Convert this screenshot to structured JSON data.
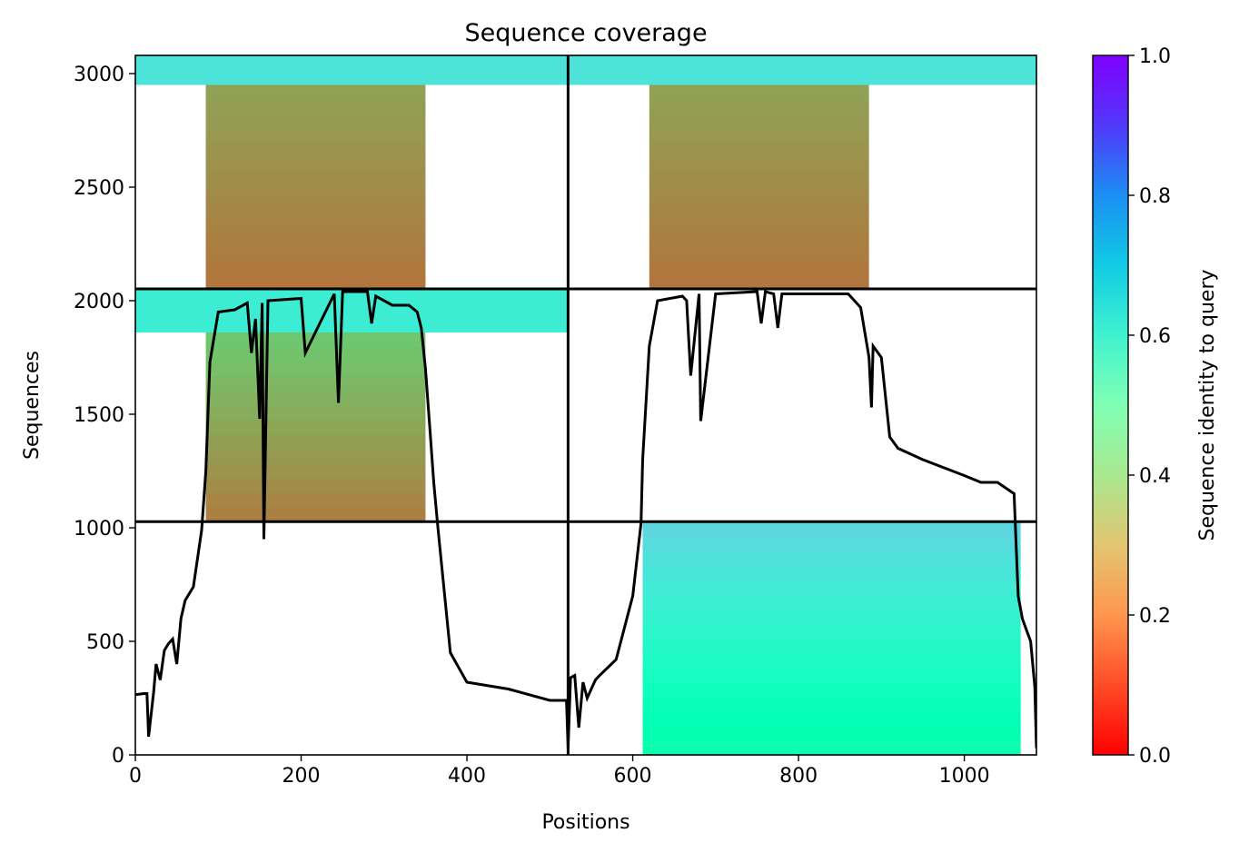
{
  "chart_data": {
    "type": "heatmap",
    "title": "Sequence coverage",
    "xlabel": "Positions",
    "ylabel": "Sequences",
    "colorbar_label": "Sequence identity to query",
    "colormap": "rainbow_r",
    "xlim": [
      0,
      1087
    ],
    "ylim": [
      0,
      3080
    ],
    "x_ticks": [
      "0",
      "200",
      "400",
      "600",
      "800",
      "1000"
    ],
    "x_tick_values": [
      0,
      200,
      400,
      600,
      800,
      1000
    ],
    "y_ticks": [
      "0",
      "500",
      "1000",
      "1500",
      "2000",
      "2500",
      "3000"
    ],
    "y_tick_values": [
      0,
      500,
      1000,
      1500,
      2000,
      2500,
      3000
    ],
    "colorbar_ticks": [
      "0.0",
      "0.2",
      "0.4",
      "0.6",
      "0.8",
      "1.0"
    ],
    "colorbar_tick_values": [
      0.0,
      0.2,
      0.4,
      0.6,
      0.8,
      1.0
    ],
    "chain_boundaries_x": [
      522
    ],
    "block_boundaries_y": [
      1027,
      2052
    ],
    "blocks": [
      {
        "y_range": [
          0,
          1027
        ],
        "x_range": [
          522,
          1087
        ],
        "span": [
          612,
          1068
        ],
        "identity_bottom": 0.47,
        "identity_top": 0.69
      },
      {
        "y_range": [
          1027,
          2052
        ],
        "x_range": [
          0,
          522
        ],
        "span": [
          85,
          350
        ],
        "identity_bottom": 0.16,
        "identity_top": 0.32
      },
      {
        "y_range": [
          1027,
          2052
        ],
        "x_range": [
          522,
          1087
        ],
        "span": [
          0,
          0
        ],
        "identity_bottom": 0.0,
        "identity_top": 0.0
      },
      {
        "y_range": [
          2052,
          3080
        ],
        "x_range": [
          0,
          522
        ],
        "span": [
          85,
          350
        ],
        "identity_bottom": 0.15,
        "identity_top": 0.23
      },
      {
        "y_range": [
          2052,
          3080
        ],
        "x_range": [
          522,
          1087
        ],
        "span": [
          620,
          885
        ],
        "identity_bottom": 0.15,
        "identity_top": 0.23
      }
    ],
    "high_identity_bands": [
      {
        "y_range": [
          1860,
          2052
        ],
        "x_range": [
          0,
          522
        ],
        "identity": 0.62
      },
      {
        "y_range": [
          2950,
          3080
        ],
        "x_range": [
          0,
          1087
        ],
        "identity": 0.65
      }
    ],
    "coverage_line": {
      "color": "#000000",
      "x": [
        0,
        10,
        14,
        16,
        22,
        25,
        30,
        35,
        40,
        45,
        50,
        55,
        60,
        70,
        80,
        85,
        90,
        100,
        120,
        135,
        140,
        145,
        150,
        153,
        155,
        160,
        200,
        205,
        240,
        245,
        250,
        280,
        285,
        290,
        300,
        310,
        330,
        340,
        345,
        350,
        355,
        360,
        365,
        380,
        400,
        450,
        500,
        520,
        522,
        525,
        530,
        535,
        540,
        545,
        555,
        560,
        580,
        600,
        610,
        612,
        620,
        630,
        660,
        665,
        670,
        680,
        682,
        700,
        750,
        755,
        760,
        770,
        775,
        780,
        860,
        875,
        885,
        888,
        890,
        900,
        910,
        920,
        950,
        1000,
        1020,
        1040,
        1060,
        1065,
        1070,
        1075,
        1080,
        1085,
        1087
      ],
      "y": [
        265,
        270,
        270,
        80,
        275,
        400,
        330,
        460,
        490,
        510,
        400,
        600,
        680,
        740,
        990,
        1250,
        1730,
        1950,
        1960,
        1990,
        1770,
        1920,
        1480,
        1990,
        950,
        2000,
        2010,
        1770,
        2030,
        1550,
        2040,
        2040,
        1900,
        2020,
        2000,
        1980,
        1980,
        1950,
        1880,
        1700,
        1450,
        1200,
        1000,
        450,
        320,
        290,
        240,
        240,
        30,
        340,
        350,
        120,
        320,
        250,
        330,
        350,
        420,
        700,
        1020,
        1300,
        1800,
        2000,
        2020,
        2000,
        1670,
        2030,
        1470,
        2030,
        2040,
        1900,
        2040,
        2030,
        1880,
        2030,
        2030,
        1970,
        1750,
        1530,
        1800,
        1750,
        1400,
        1350,
        1300,
        1230,
        1200,
        1200,
        1150,
        700,
        600,
        550,
        500,
        300,
        30
      ]
    }
  }
}
